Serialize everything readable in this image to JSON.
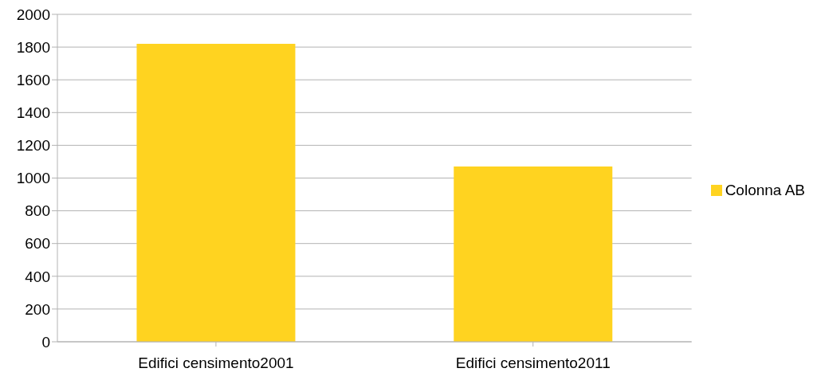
{
  "chart_data": {
    "type": "bar",
    "categories": [
      "Edifici censimento2001",
      "Edifici censimento2011"
    ],
    "series": [
      {
        "name": "Colonna AB",
        "color": "#ffd320",
        "values": [
          1820,
          1070
        ]
      }
    ],
    "ylim": [
      0,
      2000
    ],
    "yticks": [
      0,
      200,
      400,
      600,
      800,
      1000,
      1200,
      1400,
      1600,
      1800,
      2000
    ],
    "grid": "y",
    "legend": "right"
  }
}
